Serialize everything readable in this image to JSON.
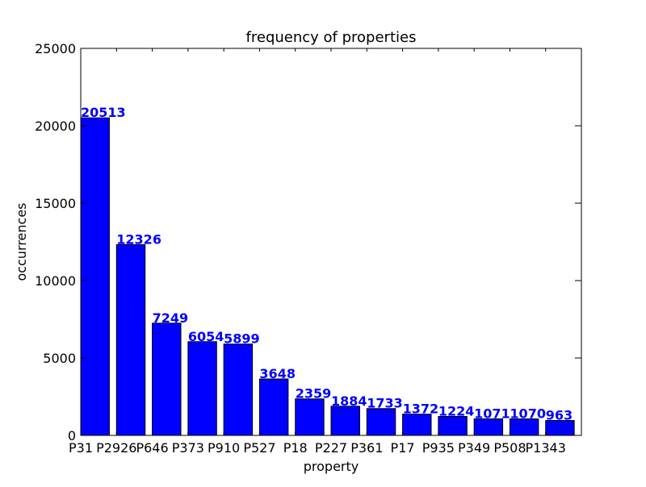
{
  "chart_data": {
    "type": "bar",
    "title": "frequency of properties",
    "xlabel": "property",
    "ylabel": "occurrences",
    "categories": [
      "P31",
      "P2926",
      "P646",
      "P373",
      "P910",
      "P527",
      "P18",
      "P227",
      "P361",
      "P17",
      "P935",
      "P349",
      "P508",
      "P1343"
    ],
    "values": [
      20513,
      12326,
      7249,
      6054,
      5899,
      3648,
      2359,
      1884,
      1733,
      1372,
      1224,
      1071,
      1070,
      963
    ],
    "data_labels": [
      "20513",
      "12326",
      "7249",
      "6054",
      "5899",
      "3648",
      "2359",
      "1884",
      "1733",
      "1372",
      "1224",
      "1071",
      "1070",
      "963"
    ],
    "ylim": [
      0,
      25000
    ],
    "yticks": [
      0,
      5000,
      10000,
      15000,
      20000,
      25000
    ],
    "ytick_labels": [
      "0",
      "5000",
      "10000",
      "15000",
      "20000",
      "25000"
    ],
    "grid": false,
    "legend": "none",
    "bar_color": "#0000ff",
    "label_color": "#0000ff"
  }
}
